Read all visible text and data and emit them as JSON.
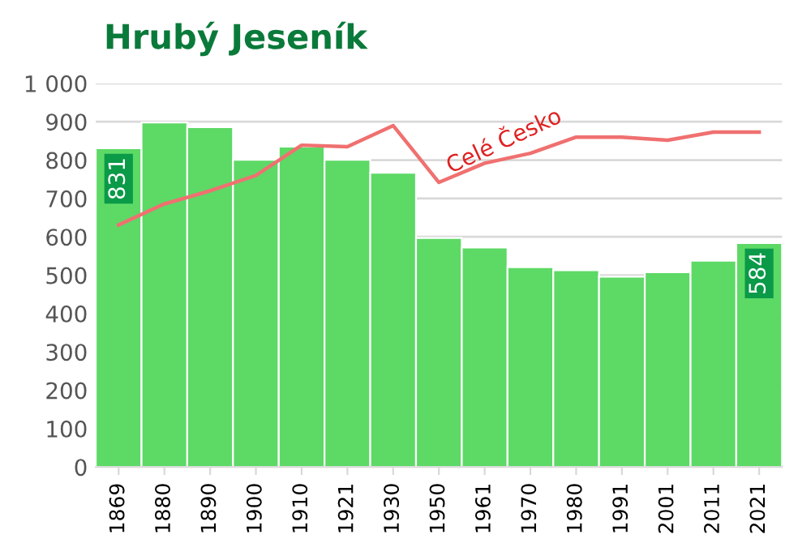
{
  "chart_data": {
    "type": "bar",
    "title": "Hrubý Jeseník",
    "categories": [
      "1869",
      "1880",
      "1890",
      "1900",
      "1910",
      "1921",
      "1930",
      "1950",
      "1961",
      "1970",
      "1980",
      "1991",
      "2001",
      "2011",
      "2021"
    ],
    "series": [
      {
        "color": "#5dd966",
        "values": [
          831,
          898,
          886,
          801,
          835,
          801,
          767,
          597,
          572,
          521,
          513,
          496,
          508,
          538,
          584
        ],
        "value_labels": [
          "831",
          null,
          null,
          null,
          null,
          null,
          null,
          null,
          null,
          null,
          null,
          null,
          null,
          null,
          "584"
        ]
      },
      {
        "type": "line",
        "name": "Celé Česko",
        "color": "#f07070",
        "values": [
          631,
          686,
          720,
          760,
          839,
          835,
          890,
          742,
          792,
          818,
          860,
          860,
          852,
          873,
          873
        ]
      }
    ],
    "ylim": [
      0,
      1000
    ],
    "yticks": [
      0,
      100,
      200,
      300,
      400,
      500,
      600,
      700,
      800,
      900,
      {
        "value": 1000,
        "label": "1 000"
      }
    ],
    "grid": "y",
    "legend": false
  }
}
